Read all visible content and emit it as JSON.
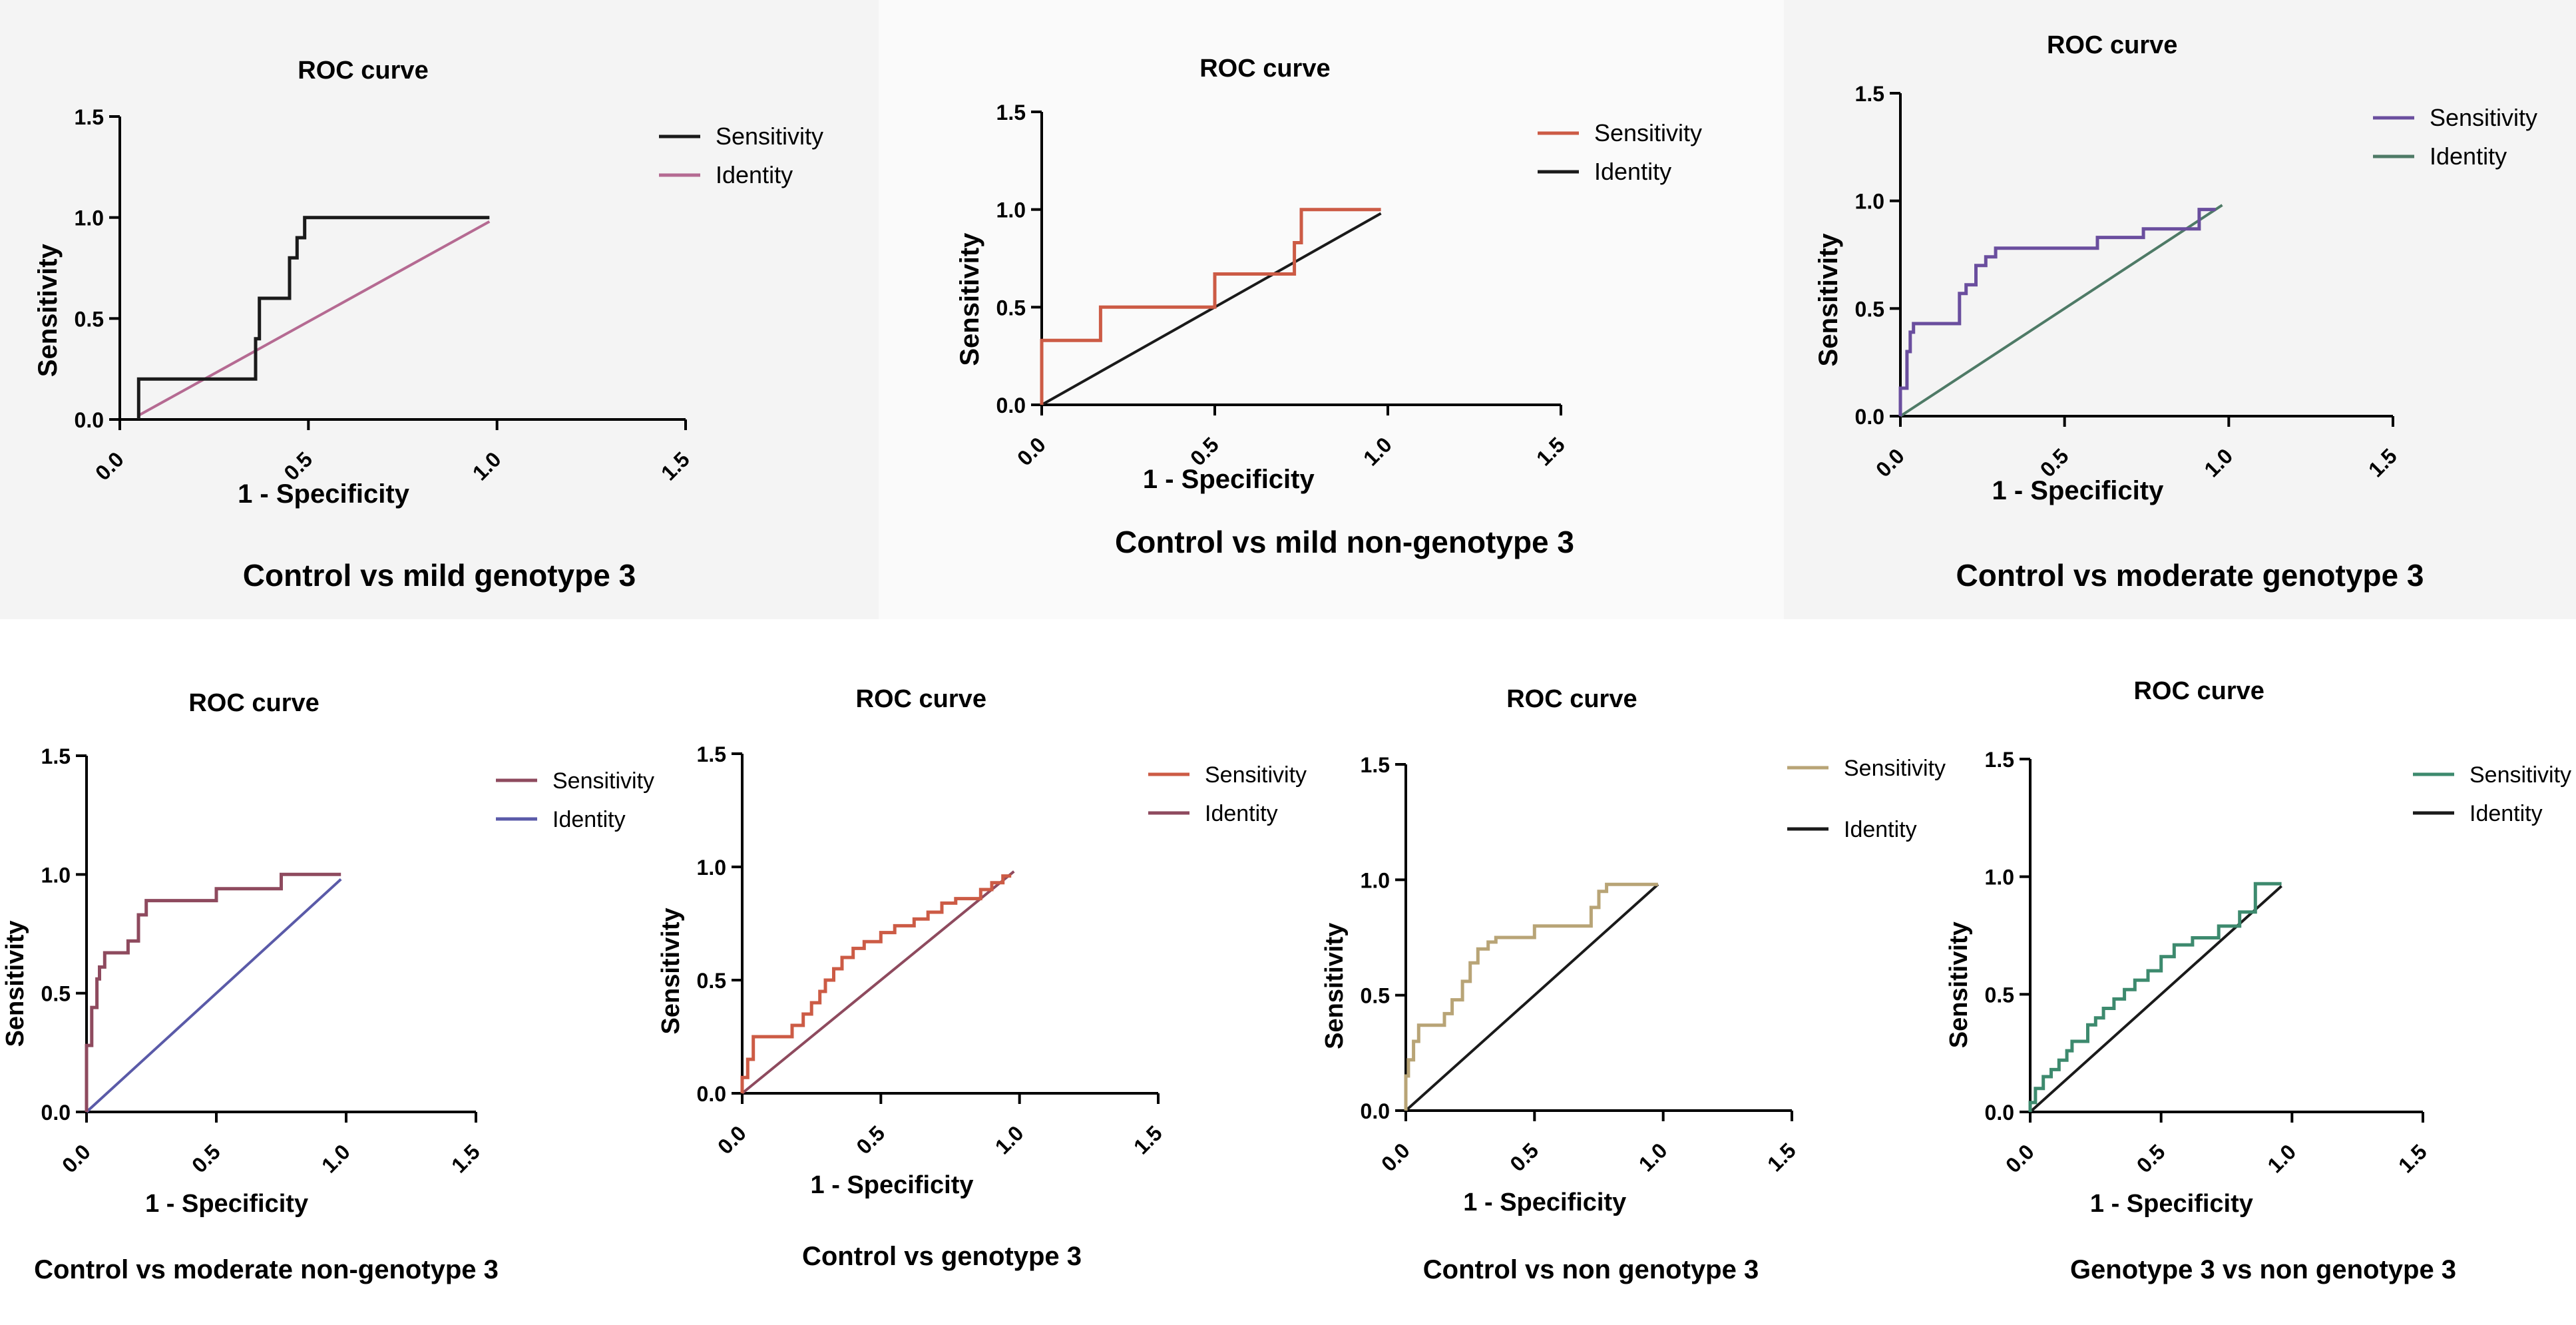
{
  "figure": {
    "legend_labels": {
      "sensitivity": "Sensitivity",
      "identity": "Identity"
    }
  },
  "chart_data": [
    {
      "type": "line",
      "title": "ROC curve",
      "caption": "Control vs mild genotype 3",
      "xlabel": "1 - Specificity",
      "ylabel": "Sensitivity",
      "xlim": [
        0,
        1.5
      ],
      "ylim": [
        0,
        1.5
      ],
      "xticks": [
        "0.0",
        "0.5",
        "1.0",
        "1.5"
      ],
      "yticks": [
        "0.0",
        "0.5",
        "1.0",
        "1.5"
      ],
      "legend": "right",
      "series": [
        {
          "name": "Sensitivity",
          "color": "#1a1a1a",
          "x": [
            0.05,
            0.05,
            0.36,
            0.36,
            0.37,
            0.37,
            0.45,
            0.45,
            0.47,
            0.47,
            0.49,
            0.49,
            0.98
          ],
          "y": [
            0.0,
            0.2,
            0.2,
            0.4,
            0.4,
            0.6,
            0.6,
            0.8,
            0.8,
            0.9,
            0.9,
            1.0,
            1.0
          ]
        },
        {
          "name": "Identity",
          "color": "#b56a92",
          "x": [
            0.05,
            0.98
          ],
          "y": [
            0.02,
            0.98
          ]
        }
      ]
    },
    {
      "type": "line",
      "title": "ROC curve",
      "caption": "Control vs mild non-genotype 3",
      "xlabel": "1 - Specificity",
      "ylabel": "Sensitivity",
      "xlim": [
        0,
        1.5
      ],
      "ylim": [
        0,
        1.5
      ],
      "xticks": [
        "0.0",
        "0.5",
        "1.0",
        "1.5"
      ],
      "yticks": [
        "0.0",
        "0.5",
        "1.0",
        "1.5"
      ],
      "legend": "right",
      "series": [
        {
          "name": "Sensitivity",
          "color": "#cc5b45",
          "x": [
            0.0,
            0.0,
            0.17,
            0.17,
            0.5,
            0.5,
            0.73,
            0.73,
            0.75,
            0.75,
            0.98
          ],
          "y": [
            0.0,
            0.33,
            0.33,
            0.5,
            0.5,
            0.67,
            0.67,
            0.83,
            0.83,
            1.0,
            1.0
          ]
        },
        {
          "name": "Identity",
          "color": "#1a1a1a",
          "x": [
            0.0,
            0.98
          ],
          "y": [
            0.0,
            0.98
          ]
        }
      ]
    },
    {
      "type": "line",
      "title": "ROC curve",
      "caption": "Control vs moderate genotype 3",
      "xlabel": "1 - Specificity",
      "ylabel": "Sensitivity",
      "xlim": [
        0,
        1.5
      ],
      "ylim": [
        0,
        1.5
      ],
      "xticks": [
        "0.0",
        "0.5",
        "1.0",
        "1.5"
      ],
      "yticks": [
        "0.0",
        "0.5",
        "1.0",
        "1.5"
      ],
      "legend": "right",
      "series": [
        {
          "name": "Sensitivity",
          "color": "#6a4e9e",
          "x": [
            0.0,
            0.0,
            0.02,
            0.02,
            0.03,
            0.03,
            0.04,
            0.04,
            0.18,
            0.18,
            0.2,
            0.2,
            0.23,
            0.23,
            0.26,
            0.26,
            0.29,
            0.29,
            0.35,
            0.35,
            0.6,
            0.6,
            0.74,
            0.74,
            0.91,
            0.91,
            0.96
          ],
          "y": [
            0.0,
            0.13,
            0.13,
            0.3,
            0.3,
            0.39,
            0.39,
            0.43,
            0.43,
            0.57,
            0.57,
            0.61,
            0.61,
            0.7,
            0.7,
            0.74,
            0.74,
            0.78,
            0.78,
            0.78,
            0.78,
            0.83,
            0.83,
            0.87,
            0.87,
            0.96,
            0.96
          ]
        },
        {
          "name": "Identity",
          "color": "#4e7a66",
          "x": [
            0.0,
            0.98
          ],
          "y": [
            0.0,
            0.98
          ]
        }
      ]
    },
    {
      "type": "line",
      "title": "ROC curve",
      "caption": "Control vs moderate non-genotype 3",
      "xlabel": "1 - Specificity",
      "ylabel": "Sensitivity",
      "xlim": [
        0,
        1.5
      ],
      "ylim": [
        0,
        1.5
      ],
      "xticks": [
        "0.0",
        "0.5",
        "1.0",
        "1.5"
      ],
      "yticks": [
        "0.0",
        "0.5",
        "1.0",
        "1.5"
      ],
      "legend": "right",
      "series": [
        {
          "name": "Sensitivity",
          "color": "#8e4a5e",
          "x": [
            0.0,
            0.0,
            0.02,
            0.02,
            0.04,
            0.04,
            0.05,
            0.05,
            0.07,
            0.07,
            0.16,
            0.16,
            0.2,
            0.2,
            0.23,
            0.23,
            0.5,
            0.5,
            0.75,
            0.75,
            0.98
          ],
          "y": [
            0.0,
            0.28,
            0.28,
            0.44,
            0.44,
            0.56,
            0.56,
            0.61,
            0.61,
            0.67,
            0.67,
            0.72,
            0.72,
            0.83,
            0.83,
            0.89,
            0.89,
            0.94,
            0.94,
            1.0,
            1.0
          ]
        },
        {
          "name": "Identity",
          "color": "#5a5aa8",
          "x": [
            0.0,
            0.98
          ],
          "y": [
            0.0,
            0.98
          ]
        }
      ]
    },
    {
      "type": "line",
      "title": "ROC curve",
      "caption": "Control vs genotype 3",
      "xlabel": "1 - Specificity",
      "ylabel": "Sensitivity",
      "xlim": [
        0,
        1.5
      ],
      "ylim": [
        0,
        1.5
      ],
      "xticks": [
        "0.0",
        "0.5",
        "1.0",
        "1.5"
      ],
      "yticks": [
        "0.0",
        "0.5",
        "1.0",
        "1.5"
      ],
      "legend": "right",
      "series": [
        {
          "name": "Sensitivity",
          "color": "#cc5b45",
          "x": [
            0.0,
            0.0,
            0.02,
            0.02,
            0.04,
            0.04,
            0.18,
            0.18,
            0.22,
            0.22,
            0.25,
            0.25,
            0.28,
            0.28,
            0.3,
            0.3,
            0.33,
            0.33,
            0.36,
            0.36,
            0.4,
            0.4,
            0.44,
            0.44,
            0.5,
            0.5,
            0.55,
            0.55,
            0.62,
            0.62,
            0.67,
            0.67,
            0.72,
            0.72,
            0.77,
            0.77,
            0.86,
            0.86,
            0.9,
            0.9,
            0.94,
            0.94,
            0.97
          ],
          "y": [
            0.0,
            0.07,
            0.07,
            0.15,
            0.15,
            0.25,
            0.25,
            0.3,
            0.3,
            0.35,
            0.35,
            0.4,
            0.4,
            0.45,
            0.45,
            0.5,
            0.5,
            0.55,
            0.55,
            0.6,
            0.6,
            0.64,
            0.64,
            0.67,
            0.67,
            0.71,
            0.71,
            0.74,
            0.74,
            0.77,
            0.77,
            0.8,
            0.8,
            0.84,
            0.84,
            0.86,
            0.86,
            0.9,
            0.9,
            0.93,
            0.93,
            0.96,
            0.96
          ]
        },
        {
          "name": "Identity",
          "color": "#8e4a5e",
          "x": [
            0.0,
            0.98
          ],
          "y": [
            0.0,
            0.98
          ]
        }
      ]
    },
    {
      "type": "line",
      "title": "ROC curve",
      "caption": "Control vs non genotype 3",
      "xlabel": "1 - Specificity",
      "ylabel": "Sensitivity",
      "xlim": [
        0,
        1.5
      ],
      "ylim": [
        0,
        1.5
      ],
      "xticks": [
        "0.0",
        "0.5",
        "1.0",
        "1.5"
      ],
      "yticks": [
        "0.0",
        "0.5",
        "1.0",
        "1.5"
      ],
      "legend": "right",
      "series": [
        {
          "name": "Sensitivity",
          "color": "#b8a476",
          "x": [
            0.0,
            0.0,
            0.01,
            0.01,
            0.03,
            0.03,
            0.05,
            0.05,
            0.15,
            0.15,
            0.18,
            0.18,
            0.22,
            0.22,
            0.25,
            0.25,
            0.28,
            0.28,
            0.32,
            0.32,
            0.35,
            0.35,
            0.4,
            0.4,
            0.5,
            0.5,
            0.72,
            0.72,
            0.75,
            0.75,
            0.78,
            0.78,
            0.98
          ],
          "y": [
            0.0,
            0.15,
            0.15,
            0.22,
            0.22,
            0.3,
            0.3,
            0.37,
            0.37,
            0.42,
            0.42,
            0.48,
            0.48,
            0.56,
            0.56,
            0.64,
            0.64,
            0.7,
            0.7,
            0.73,
            0.73,
            0.75,
            0.75,
            0.75,
            0.75,
            0.8,
            0.8,
            0.88,
            0.88,
            0.95,
            0.95,
            0.98,
            0.98
          ]
        },
        {
          "name": "Identity",
          "color": "#1a1a1a",
          "x": [
            0.0,
            0.98
          ],
          "y": [
            0.0,
            0.98
          ]
        }
      ]
    },
    {
      "type": "line",
      "title": "ROC curve",
      "caption": "Genotype 3 vs non genotype 3",
      "xlabel": "1 - Specificity",
      "ylabel": "Sensitivity",
      "xlim": [
        0,
        1.5
      ],
      "ylim": [
        0,
        1.5
      ],
      "xticks": [
        "0.0",
        "0.5",
        "1.0",
        "1.5"
      ],
      "yticks": [
        "0.0",
        "0.5",
        "1.0",
        "1.5"
      ],
      "legend": "right",
      "series": [
        {
          "name": "Sensitivity",
          "color": "#3d8a6e",
          "x": [
            0.0,
            0.0,
            0.02,
            0.02,
            0.05,
            0.05,
            0.08,
            0.08,
            0.11,
            0.11,
            0.14,
            0.14,
            0.16,
            0.16,
            0.22,
            0.22,
            0.25,
            0.25,
            0.28,
            0.28,
            0.32,
            0.32,
            0.36,
            0.36,
            0.4,
            0.4,
            0.45,
            0.45,
            0.5,
            0.5,
            0.55,
            0.55,
            0.62,
            0.62,
            0.72,
            0.72,
            0.8,
            0.8,
            0.86,
            0.86,
            0.96
          ],
          "y": [
            0.0,
            0.04,
            0.04,
            0.1,
            0.1,
            0.15,
            0.15,
            0.18,
            0.18,
            0.22,
            0.22,
            0.26,
            0.26,
            0.3,
            0.3,
            0.37,
            0.37,
            0.4,
            0.4,
            0.44,
            0.44,
            0.48,
            0.48,
            0.52,
            0.52,
            0.56,
            0.56,
            0.6,
            0.6,
            0.66,
            0.66,
            0.71,
            0.71,
            0.74,
            0.74,
            0.79,
            0.79,
            0.85,
            0.85,
            0.97,
            0.97
          ]
        },
        {
          "name": "Identity",
          "color": "#1a1a1a",
          "x": [
            0.0,
            0.96
          ],
          "y": [
            0.0,
            0.96
          ]
        }
      ]
    }
  ]
}
